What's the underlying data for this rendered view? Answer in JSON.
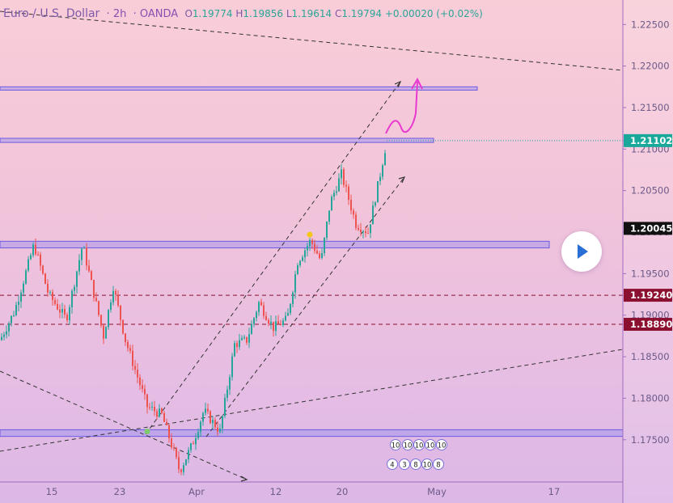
{
  "header": {
    "symbol": "Euro / U.S. Dollar",
    "timeframe": "2h",
    "broker": "OANDA",
    "o_label": "O",
    "o": "1.19774",
    "h_label": "H",
    "h": "1.19856",
    "l_label": "L",
    "l": "1.19614",
    "c_label": "C",
    "c": "1.19794",
    "change": "+0.00020 (+0.02%)"
  },
  "chart_data": {
    "type": "candlestick",
    "ylim": [
      1.1704,
      1.2262
    ],
    "y_ticks": [
      "1.22500",
      "1.22000",
      "1.21500",
      "1.21000",
      "1.20500",
      "1.20000",
      "1.19500",
      "1.19000",
      "1.18500",
      "1.18000",
      "1.17500"
    ],
    "x_ticks": [
      "15",
      "23",
      "Apr",
      "12",
      "20",
      "May",
      "17"
    ],
    "price_badges": [
      {
        "label": "1.21102",
        "value": 1.21102,
        "color": "#1aa89a"
      },
      {
        "label": "1.20045",
        "value": 1.20045,
        "color": "#111111"
      },
      {
        "label": "1.19240",
        "value": 1.1924,
        "color": "#8b1030"
      },
      {
        "label": "1.18890",
        "value": 1.1889,
        "color": "#8b1030"
      }
    ],
    "zones": [
      {
        "y_high": 1.2175,
        "y_low": 1.2171
      },
      {
        "y_high": 1.2113,
        "y_low": 1.2108
      },
      {
        "y_high": 1.1989,
        "y_low": 1.1981
      },
      {
        "y_high": 1.1762,
        "y_low": 1.1754
      }
    ],
    "dashed_levels": [
      1.1924,
      1.1889
    ],
    "path_anchors": [
      [
        0,
        1.187
      ],
      [
        18,
        1.1905
      ],
      [
        42,
        1.1985
      ],
      [
        60,
        1.1925
      ],
      [
        82,
        1.1895
      ],
      [
        102,
        1.1985
      ],
      [
        128,
        1.1875
      ],
      [
        140,
        1.1935
      ],
      [
        155,
        1.187
      ],
      [
        182,
        1.179
      ],
      [
        200,
        1.178
      ],
      [
        215,
        1.1735
      ],
      [
        222,
        1.1712
      ],
      [
        238,
        1.1745
      ],
      [
        252,
        1.1785
      ],
      [
        272,
        1.176
      ],
      [
        290,
        1.1865
      ],
      [
        305,
        1.187
      ],
      [
        320,
        1.1915
      ],
      [
        338,
        1.1885
      ],
      [
        355,
        1.1895
      ],
      [
        368,
        1.1965
      ],
      [
        384,
        1.199
      ],
      [
        397,
        1.1965
      ],
      [
        408,
        1.2035
      ],
      [
        422,
        1.207
      ],
      [
        440,
        1.201
      ],
      [
        455,
        1.2
      ],
      [
        468,
        1.206
      ],
      [
        478,
        1.211
      ]
    ],
    "markers": [
      {
        "x": 182,
        "y": 1.176,
        "color": "#7ecb6b"
      },
      {
        "x": 383,
        "y": 1.1997,
        "color": "#f5c518"
      }
    ],
    "icons": [
      "10",
      "10",
      "10",
      "10",
      "10",
      "4",
      "3",
      "8",
      "10",
      "8"
    ]
  }
}
